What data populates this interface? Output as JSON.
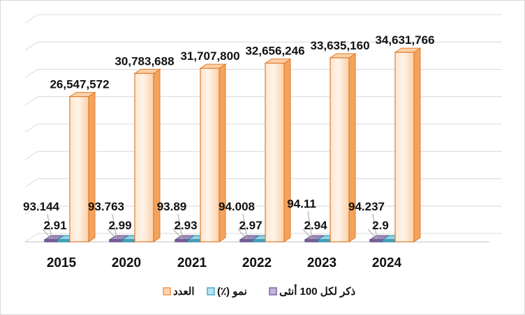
{
  "chart_data": {
    "type": "bar",
    "categories": [
      "2015",
      "2020",
      "2021",
      "2022",
      "2023",
      "2024"
    ],
    "series": [
      {
        "name": "ذكر لكل 100 أنثى",
        "values": [
          93.144,
          93.763,
          93.89,
          94.008,
          94.11,
          94.237
        ],
        "labels": [
          "93.144",
          "93.763",
          "93.89",
          "94.008",
          "94.11",
          "94.237"
        ],
        "color": "#8064a2"
      },
      {
        "name": "نمو (٪)",
        "values": [
          2.91,
          2.99,
          2.93,
          2.97,
          2.94,
          2.9
        ],
        "labels": [
          "2.91",
          "2.99",
          "2.93",
          "2.97",
          "2.94",
          "2.9"
        ],
        "color": "#4bacc6"
      },
      {
        "name": "العدد",
        "values": [
          26547572,
          30783688,
          31707800,
          32656246,
          33635160,
          34631766
        ],
        "labels": [
          "26,547,572",
          "30,783,688",
          "31,707,800",
          "32,656,246",
          "33,635,160",
          "34,631,766"
        ],
        "color": "#f79646"
      }
    ],
    "ylim": [
      0,
      40000000
    ],
    "grid": true,
    "legend_position": "bottom",
    "three_d": true
  }
}
